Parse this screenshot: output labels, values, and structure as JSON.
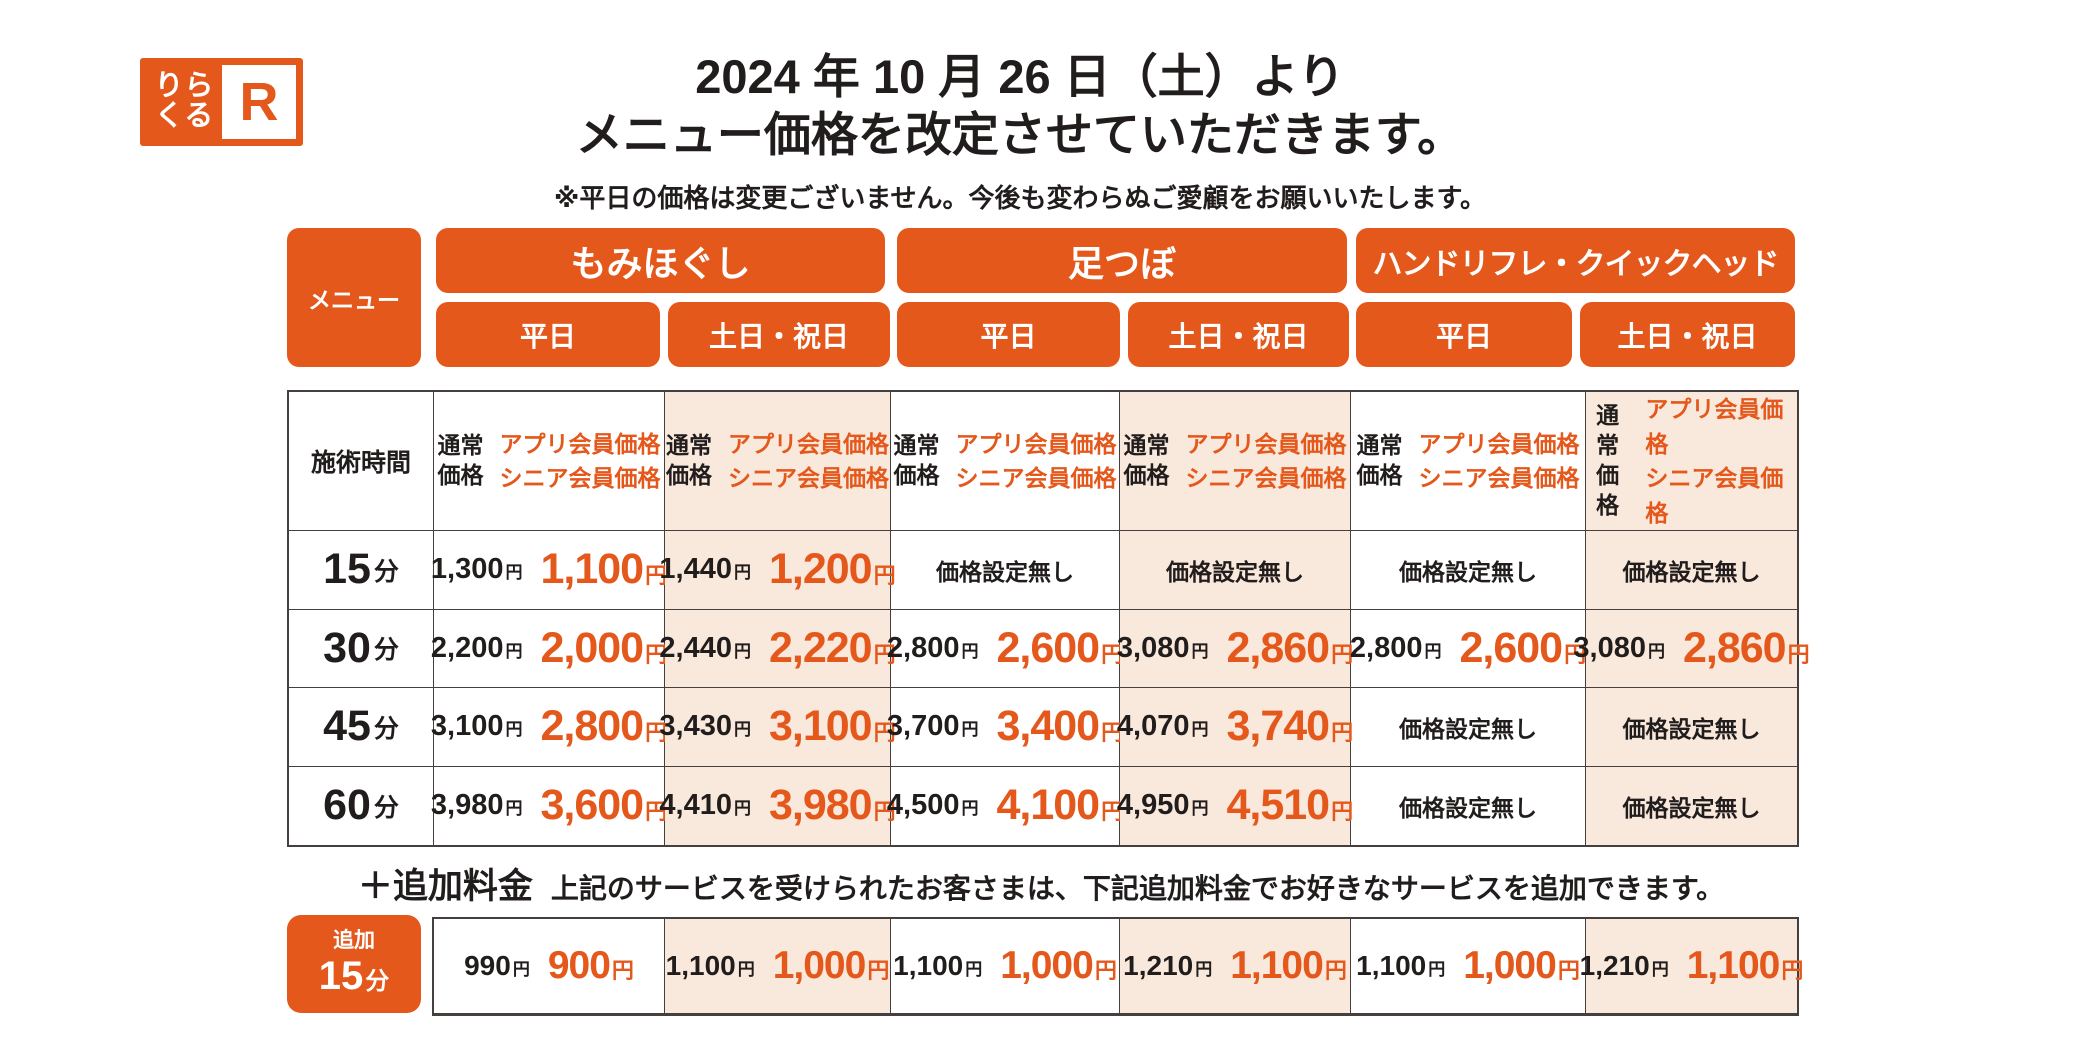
{
  "page": {
    "title_line1": "2024 年 10 月 26 日（土）より",
    "title_line2": "メニュー価格を改定させていただきます。",
    "note": "※平日の価格は変更ございません。今後も変わらぬご愛顧をお願いいたします。"
  },
  "logo": {
    "line1": "りら",
    "line2": "くる",
    "mark": "R"
  },
  "colors": {
    "brand_orange": "#e4581c",
    "weekend_peach": "#f9e8dc",
    "border": "#45403e",
    "ink": "#221d1d"
  },
  "table": {
    "menu_label": "メニュー",
    "time_header": "施術時間",
    "categories": [
      {
        "name": "もみほぐし",
        "days": [
          "平日",
          "土日・祝日"
        ]
      },
      {
        "name": "足つぼ",
        "days": [
          "平日",
          "土日・祝日"
        ]
      },
      {
        "name": "ハンドリフレ・クイックヘッド",
        "days": [
          "平日",
          "土日・祝日"
        ]
      }
    ],
    "price_header": {
      "normal": "通常価格",
      "member": "アプリ会員価格",
      "senior": "シニア会員価格"
    },
    "no_price_label": "価格設定無し",
    "yen": "円",
    "minute_unit": "分",
    "rows": [
      {
        "time": "15",
        "cells": [
          {
            "normal": "1,300",
            "member": "1,100"
          },
          {
            "normal": "1,440",
            "member": "1,200"
          },
          {
            "none": true
          },
          {
            "none": true
          },
          {
            "none": true
          },
          {
            "none": true
          }
        ]
      },
      {
        "time": "30",
        "cells": [
          {
            "normal": "2,200",
            "member": "2,000"
          },
          {
            "normal": "2,440",
            "member": "2,220"
          },
          {
            "normal": "2,800",
            "member": "2,600"
          },
          {
            "normal": "3,080",
            "member": "2,860"
          },
          {
            "normal": "2,800",
            "member": "2,600"
          },
          {
            "normal": "3,080",
            "member": "2,860"
          }
        ]
      },
      {
        "time": "45",
        "cells": [
          {
            "normal": "3,100",
            "member": "2,800"
          },
          {
            "normal": "3,430",
            "member": "3,100"
          },
          {
            "normal": "3,700",
            "member": "3,400"
          },
          {
            "normal": "4,070",
            "member": "3,740"
          },
          {
            "none": true
          },
          {
            "none": true
          }
        ]
      },
      {
        "time": "60",
        "cells": [
          {
            "normal": "3,980",
            "member": "3,600"
          },
          {
            "normal": "4,410",
            "member": "3,980"
          },
          {
            "normal": "4,500",
            "member": "4,100"
          },
          {
            "normal": "4,950",
            "member": "4,510"
          },
          {
            "none": true
          },
          {
            "none": true
          }
        ]
      }
    ]
  },
  "addon": {
    "heading_strong": "＋追加料金",
    "heading_text": "上記のサービスを受けられたお客さまは、下記追加料金でお好きなサービスを追加できます。",
    "label_top": "追加",
    "label_time": "15",
    "cells": [
      {
        "normal": "990",
        "member": "900"
      },
      {
        "normal": "1,100",
        "member": "1,000"
      },
      {
        "normal": "1,100",
        "member": "1,000"
      },
      {
        "normal": "1,210",
        "member": "1,100"
      },
      {
        "normal": "1,100",
        "member": "1,000"
      },
      {
        "normal": "1,210",
        "member": "1,100"
      }
    ]
  }
}
